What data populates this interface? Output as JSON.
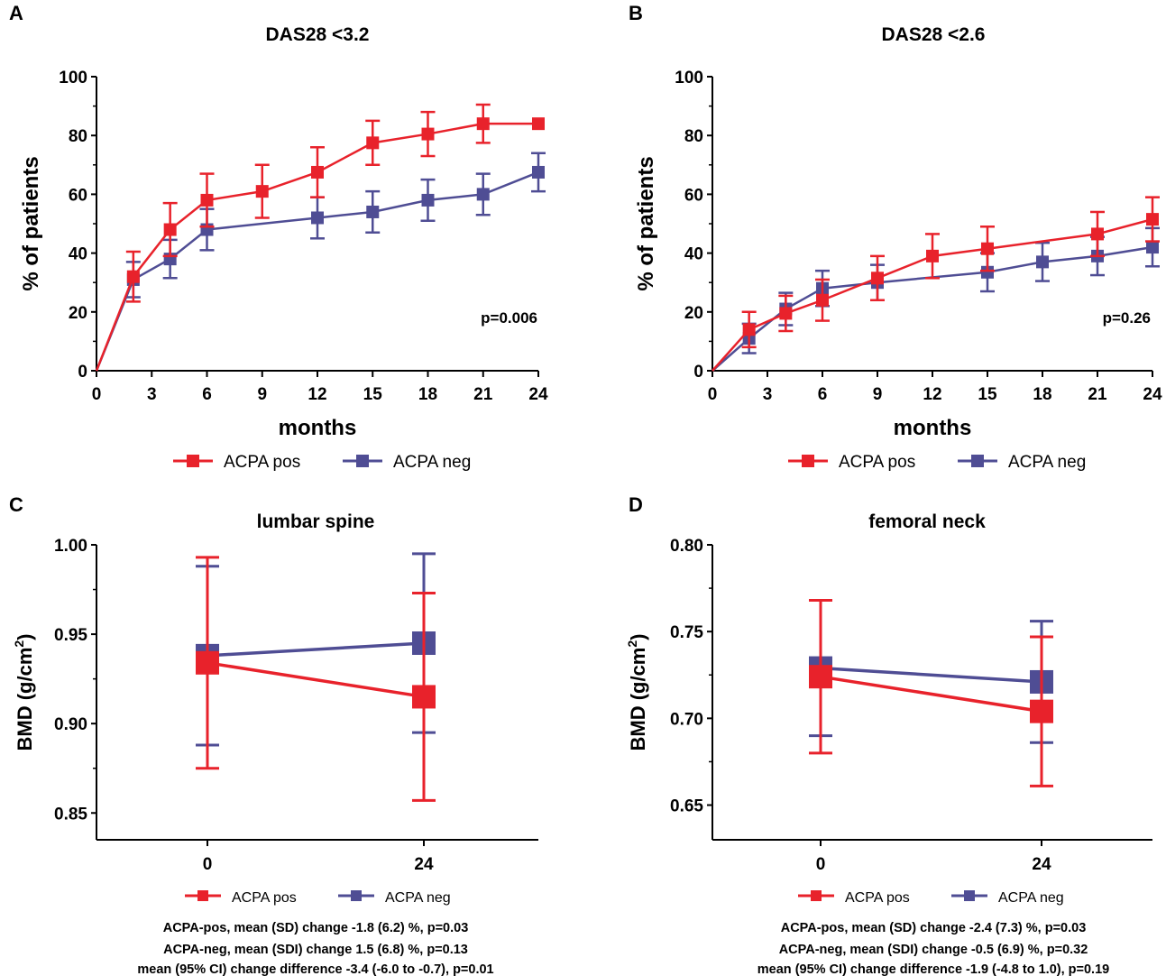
{
  "chart_data": [
    {
      "panel_label": "A",
      "type": "line",
      "title": "DAS28 <3.2",
      "xlabel": "months",
      "ylabel": "% of patients",
      "x_ticks": [
        "0",
        "3",
        "6",
        "9",
        "12",
        "15",
        "18",
        "21",
        "24"
      ],
      "y_ticks": [
        "0",
        "20",
        "40",
        "60",
        "80",
        "100"
      ],
      "xlim": [
        0,
        24
      ],
      "ylim": [
        0,
        100
      ],
      "annotation": "p=0.006",
      "series": [
        {
          "name": "ACPA pos",
          "color": "#e8222b",
          "x": [
            0,
            2,
            4,
            6,
            9,
            12,
            15,
            18,
            21,
            24
          ],
          "y": [
            0,
            32,
            48,
            58,
            61,
            67.5,
            77.5,
            80.5,
            84,
            84
          ],
          "err": [
            0,
            8.5,
            9,
            9,
            9,
            8.5,
            7.5,
            7.5,
            6.5,
            0
          ]
        },
        {
          "name": "ACPA neg",
          "color": "#4f4d94",
          "x": [
            0,
            2,
            4,
            6,
            12,
            15,
            18,
            21,
            24
          ],
          "y": [
            0,
            31,
            38,
            48,
            52,
            54,
            58,
            60,
            67.5
          ],
          "err": [
            0,
            6,
            6.5,
            7,
            7,
            7,
            7,
            7,
            6.5
          ]
        }
      ],
      "legend": [
        "ACPA pos",
        "ACPA neg"
      ]
    },
    {
      "panel_label": "B",
      "type": "line",
      "title": "DAS28 <2.6",
      "xlabel": "months",
      "ylabel": "% of patients",
      "x_ticks": [
        "0",
        "3",
        "6",
        "9",
        "12",
        "15",
        "18",
        "21",
        "24"
      ],
      "y_ticks": [
        "0",
        "20",
        "40",
        "60",
        "80",
        "100"
      ],
      "xlim": [
        0,
        24
      ],
      "ylim": [
        0,
        100
      ],
      "annotation": "p=0.26",
      "series": [
        {
          "name": "ACPA pos",
          "color": "#e8222b",
          "x": [
            0,
            2,
            4,
            6,
            9,
            12,
            15,
            21,
            24
          ],
          "y": [
            0,
            14,
            19.5,
            24,
            31.5,
            39,
            41.5,
            46.5,
            51.5
          ],
          "err": [
            0,
            6,
            6,
            7,
            7.5,
            7.5,
            7.5,
            7.5,
            7.5
          ]
        },
        {
          "name": "ACPA neg",
          "color": "#4f4d94",
          "x": [
            0,
            2,
            4,
            6,
            9,
            15,
            18,
            21,
            24
          ],
          "y": [
            0,
            11,
            21,
            28,
            30,
            33.5,
            37,
            39,
            42
          ],
          "err": [
            0,
            5,
            5.5,
            6,
            6,
            6.5,
            6.5,
            6.5,
            6.5
          ]
        }
      ],
      "legend": [
        "ACPA pos",
        "ACPA neg"
      ]
    },
    {
      "panel_label": "C",
      "type": "line",
      "title": "lumbar spine",
      "ylabel_main": "BMD (g/cm",
      "ylabel_sup": "2",
      "ylabel_end": ")",
      "x_ticks": [
        "0",
        "24"
      ],
      "y_ticks": [
        "0.85",
        "0.90",
        "0.95",
        "1.00"
      ],
      "ylim": [
        0.835,
        1.0
      ],
      "series": [
        {
          "name": "ACPA pos",
          "color": "#e8222b",
          "x": [
            0,
            24
          ],
          "y": [
            0.934,
            0.915
          ],
          "err": [
            0.059,
            0.058
          ]
        },
        {
          "name": "ACPA neg",
          "color": "#4f4d94",
          "x": [
            0,
            24
          ],
          "y": [
            0.938,
            0.945
          ],
          "err": [
            0.05,
            0.05
          ]
        }
      ],
      "legend": [
        "ACPA pos",
        "ACPA neg"
      ],
      "notes": [
        "ACPA-pos, mean (SD) change -1.8 (6.2) %, p=0.03",
        "ACPA-neg, mean (SDI) change 1.5 (6.8) %, p=0.13",
        "mean (95% CI) change difference -3.4 (-6.0 to -0.7), p=0.01"
      ]
    },
    {
      "panel_label": "D",
      "type": "line",
      "title": "femoral neck",
      "ylabel_main": "BMD (g/cm",
      "ylabel_sup": "2",
      "ylabel_end": ")",
      "x_ticks": [
        "0",
        "24"
      ],
      "y_ticks": [
        "0.65",
        "0.70",
        "0.75",
        "0.80"
      ],
      "ylim": [
        0.63,
        0.8
      ],
      "series": [
        {
          "name": "ACPA pos",
          "color": "#e8222b",
          "x": [
            0,
            24
          ],
          "y": [
            0.724,
            0.704
          ],
          "err": [
            0.044,
            0.043
          ]
        },
        {
          "name": "ACPA neg",
          "color": "#4f4d94",
          "x": [
            0,
            24
          ],
          "y": [
            0.729,
            0.721
          ],
          "err": [
            0.039,
            0.035
          ]
        }
      ],
      "legend": [
        "ACPA pos",
        "ACPA neg"
      ],
      "notes": [
        "ACPA-pos, mean (SD) change -2.4 (7.3) %, p=0.03",
        "ACPA-neg, mean (SDI) change -0.5 (6.9) %, p=0.32",
        "mean (95% CI) change difference -1.9 (-4.8 to 1.0), p=0.19"
      ]
    }
  ]
}
